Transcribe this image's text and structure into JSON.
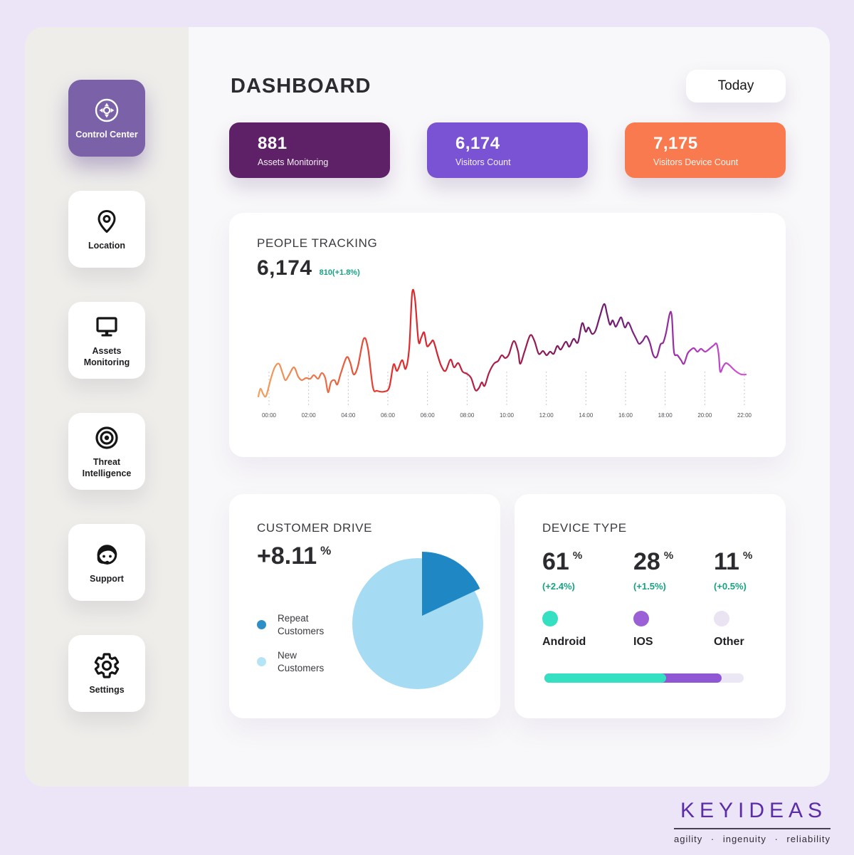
{
  "app": {
    "title": "DASHBOARD",
    "today_button": "Today"
  },
  "sidebar": {
    "items": [
      {
        "label": "Control Center",
        "icon": "dpad-icon",
        "active": true
      },
      {
        "label": "Location",
        "icon": "map-pin-icon",
        "active": false
      },
      {
        "label": "Assets Monitoring",
        "icon": "monitor-icon",
        "active": false
      },
      {
        "label": "Threat Intelligence",
        "icon": "target-icon",
        "active": false
      },
      {
        "label": "Support",
        "icon": "headset-icon",
        "active": false
      },
      {
        "label": "Settings",
        "icon": "gear-icon",
        "active": false
      }
    ]
  },
  "stats": [
    {
      "value": "881",
      "label": "Assets Monitoring",
      "color": "#5e2168"
    },
    {
      "value": "6,174",
      "label": "Visitors Count",
      "color": "#7a52d4"
    },
    {
      "value": "7,175",
      "label": "Visitors Device Count",
      "color": "#f97a4e"
    }
  ],
  "people_tracking": {
    "title": "PEOPLE TRACKING",
    "value": "6,174",
    "delta": "810(+1.8%)",
    "delta_color": "#17a383",
    "chart_data": {
      "type": "line",
      "title": "PEOPLE TRACKING",
      "x_ticks": [
        "00:00",
        "02:00",
        "04:00",
        "06:00",
        "06:00",
        "08:00",
        "10:00",
        "12:00",
        "14:00",
        "16:00",
        "18:00",
        "20:00",
        "22:00"
      ],
      "grid": "vertical-dashed",
      "gradient": [
        "#f2a05e",
        "#ee8150",
        "#e95a3a",
        "#e62e2c",
        "#d42531",
        "#b02045",
        "#9a1c50",
        "#7c1a62",
        "#6e1d71",
        "#8c2893",
        "#b13cbe",
        "#d455d2"
      ],
      "points": [
        [
          13,
          153
        ],
        [
          16,
          142
        ],
        [
          20,
          150
        ],
        [
          24,
          152
        ],
        [
          30,
          130
        ],
        [
          36,
          112
        ],
        [
          42,
          107
        ],
        [
          47,
          120
        ],
        [
          51,
          130
        ],
        [
          56,
          123
        ],
        [
          63,
          112
        ],
        [
          69,
          125
        ],
        [
          74,
          130
        ],
        [
          80,
          127
        ],
        [
          86,
          128
        ],
        [
          91,
          123
        ],
        [
          97,
          128
        ],
        [
          102,
          120
        ],
        [
          107,
          127
        ],
        [
          111,
          147
        ],
        [
          115,
          133
        ],
        [
          120,
          130
        ],
        [
          124,
          136
        ],
        [
          129,
          120
        ],
        [
          137,
          98
        ],
        [
          142,
          105
        ],
        [
          147,
          122
        ],
        [
          153,
          110
        ],
        [
          161,
          72
        ],
        [
          167,
          85
        ],
        [
          174,
          140
        ],
        [
          180,
          145
        ],
        [
          190,
          146
        ],
        [
          197,
          140
        ],
        [
          203,
          108
        ],
        [
          208,
          117
        ],
        [
          215,
          102
        ],
        [
          220,
          114
        ],
        [
          225,
          85
        ],
        [
          229,
          9
        ],
        [
          233,
          15
        ],
        [
          238,
          75
        ],
        [
          242,
          70
        ],
        [
          246,
          63
        ],
        [
          250,
          82
        ],
        [
          255,
          78
        ],
        [
          259,
          75
        ],
        [
          265,
          95
        ],
        [
          270,
          110
        ],
        [
          276,
          117
        ],
        [
          283,
          101
        ],
        [
          288,
          112
        ],
        [
          294,
          106
        ],
        [
          300,
          118
        ],
        [
          306,
          121
        ],
        [
          312,
          127
        ],
        [
          318,
          144
        ],
        [
          323,
          141
        ],
        [
          327,
          133
        ],
        [
          331,
          138
        ],
        [
          337,
          120
        ],
        [
          344,
          107
        ],
        [
          350,
          103
        ],
        [
          355,
          95
        ],
        [
          360,
          99
        ],
        [
          365,
          94
        ],
        [
          372,
          75
        ],
        [
          378,
          90
        ],
        [
          381,
          107
        ],
        [
          387,
          90
        ],
        [
          395,
          67
        ],
        [
          401,
          75
        ],
        [
          407,
          93
        ],
        [
          413,
          89
        ],
        [
          418,
          95
        ],
        [
          423,
          90
        ],
        [
          428,
          93
        ],
        [
          433,
          82
        ],
        [
          438,
          87
        ],
        [
          445,
          76
        ],
        [
          450,
          83
        ],
        [
          456,
          72
        ],
        [
          462,
          77
        ],
        [
          468,
          50
        ],
        [
          473,
          62
        ],
        [
          477,
          56
        ],
        [
          482,
          65
        ],
        [
          487,
          60
        ],
        [
          493,
          40
        ],
        [
          499,
          23
        ],
        [
          503,
          37
        ],
        [
          507,
          52
        ],
        [
          511,
          46
        ],
        [
          515,
          55
        ],
        [
          519,
          48
        ],
        [
          523,
          42
        ],
        [
          528,
          56
        ],
        [
          533,
          49
        ],
        [
          539,
          62
        ],
        [
          544,
          72
        ],
        [
          548,
          79
        ],
        [
          553,
          75
        ],
        [
          558,
          68
        ],
        [
          563,
          77
        ],
        [
          568,
          95
        ],
        [
          573,
          97
        ],
        [
          578,
          80
        ],
        [
          582,
          77
        ],
        [
          586,
          63
        ],
        [
          591,
          37
        ],
        [
          594,
          40
        ],
        [
          597,
          90
        ],
        [
          602,
          95
        ],
        [
          607,
          102
        ],
        [
          611,
          107
        ],
        [
          616,
          93
        ],
        [
          620,
          88
        ],
        [
          625,
          85
        ],
        [
          630,
          90
        ],
        [
          635,
          86
        ],
        [
          641,
          90
        ],
        [
          648,
          85
        ],
        [
          653,
          81
        ],
        [
          657,
          79
        ],
        [
          660,
          95
        ],
        [
          662,
          118
        ],
        [
          666,
          111
        ],
        [
          670,
          106
        ],
        [
          675,
          109
        ],
        [
          680,
          114
        ],
        [
          686,
          119
        ],
        [
          692,
          122
        ],
        [
          698,
          122
        ]
      ]
    }
  },
  "customer_drive": {
    "title": "CUSTOMER DRIVE",
    "value": "+8.11",
    "unit": "%",
    "legend": [
      {
        "label": "Repeat Customers",
        "color": "#2e8fc8"
      },
      {
        "label": "New Customers",
        "color": "#b5e4f6"
      }
    ],
    "chart_data": {
      "type": "pie",
      "slices": [
        {
          "label": "Repeat Customers",
          "pct": 18,
          "color": "#1f88c4",
          "exploded": true
        },
        {
          "label": "New Customers",
          "pct": 82,
          "color": "#a6dcf3"
        }
      ]
    }
  },
  "device_type": {
    "title": "DEVICE TYPE",
    "items": [
      {
        "value": "61",
        "unit": "%",
        "delta": "(+2.4%)",
        "label": "Android",
        "color": "#35dfc1"
      },
      {
        "value": "28",
        "unit": "%",
        "delta": "(+1.5%)",
        "label": "IOS",
        "color": "#9b5fd6"
      },
      {
        "value": "11",
        "unit": "%",
        "delta": "(+0.5%)",
        "label": "Other",
        "color": "#e9e3f2"
      }
    ],
    "chart_data": {
      "type": "bar",
      "categories": [
        "Android",
        "IOS",
        "Other"
      ],
      "values": [
        61,
        28,
        11
      ],
      "colors": [
        "#35dfc1",
        "#8f57d3",
        "#ece7f5"
      ]
    }
  },
  "footer": {
    "brand": "KEYIDEAS",
    "tagline": "agility · ingenuity · reliability"
  }
}
